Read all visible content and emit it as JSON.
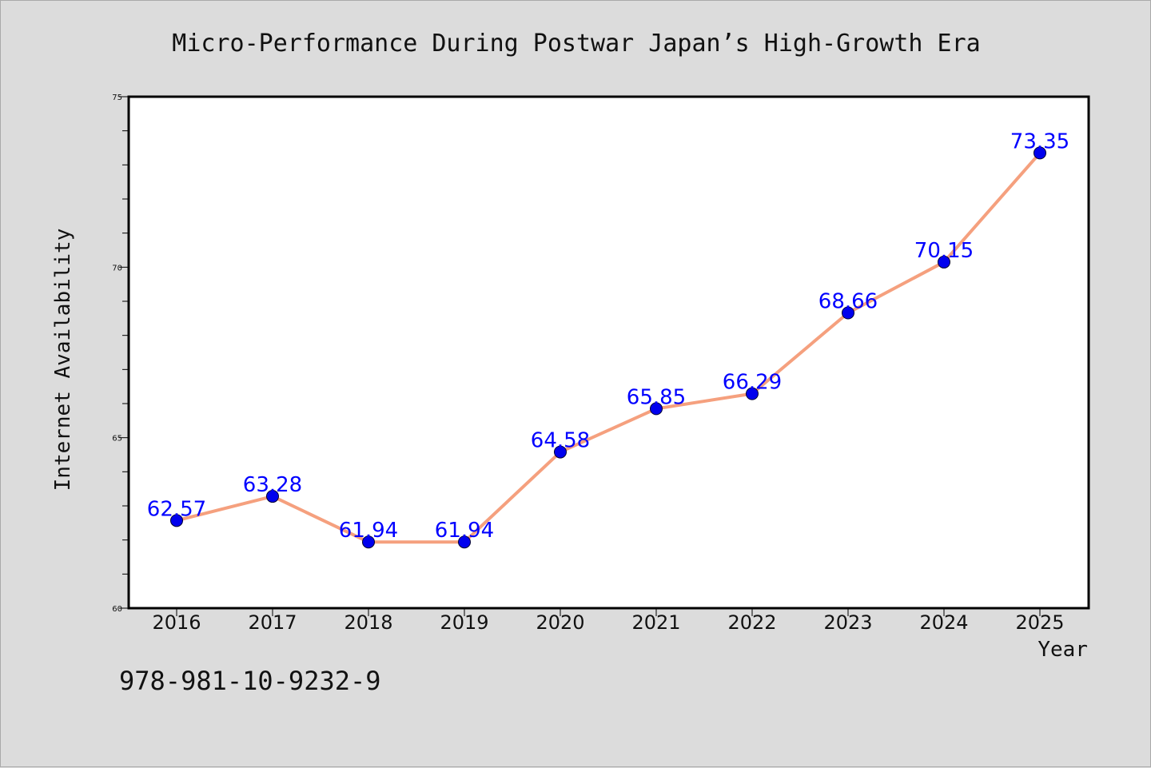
{
  "chart_data": {
    "type": "line",
    "title": "Micro-Performance During Postwar Japan’s High-Growth Era",
    "xlabel": "Year",
    "ylabel": "Internet Availability",
    "categories": [
      "2016",
      "2017",
      "2018",
      "2019",
      "2020",
      "2021",
      "2022",
      "2023",
      "2024",
      "2025"
    ],
    "series": [
      {
        "values": [
          62.57,
          63.28,
          61.94,
          61.94,
          64.58,
          65.85,
          66.29,
          68.66,
          70.15,
          73.35
        ],
        "line_color": "#f5a07e",
        "marker_color": "#0000ee",
        "label_color": "#0000ff"
      }
    ],
    "data_labels": [
      "62.57",
      "63.28",
      "61.94",
      "61.94",
      "64.58",
      "65.85",
      "66.29",
      "68.66",
      "70.15",
      "73.35"
    ],
    "ylim": [
      60,
      75
    ],
    "y_ticks": [
      "60",
      "65",
      "70",
      "75"
    ],
    "grid": false,
    "legend": "none"
  },
  "footer": {
    "code": "978-981-10-9232-9"
  },
  "colors": {
    "background": "#dcdcdc",
    "plot_area": "#ffffff",
    "axis": "#000000"
  }
}
